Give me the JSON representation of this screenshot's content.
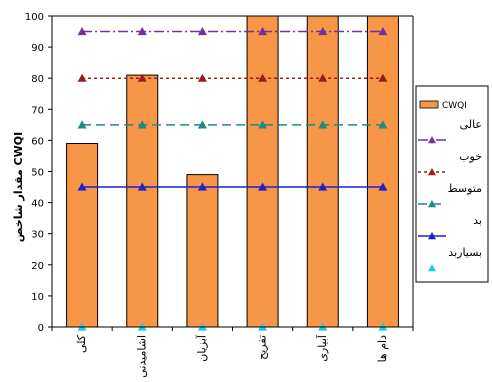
{
  "chart_data": {
    "type": "bar",
    "categories": [
      "کلی",
      "اشامیدنی",
      "آبزیان",
      "تفریح",
      "آبیاری",
      "دام ها"
    ],
    "ylabel": "مقدار شاخص CWQI",
    "ylim": [
      0,
      100
    ],
    "yticks": [
      0,
      10,
      20,
      30,
      40,
      50,
      60,
      70,
      80,
      90,
      100
    ],
    "grid": false,
    "legend_position": "right",
    "bar_series": {
      "name": "CWQI",
      "values": [
        59,
        81,
        49,
        100,
        100,
        100
      ],
      "color": "#f79646"
    },
    "line_series": [
      {
        "name": "عالی",
        "value": 95,
        "color": "#7030a0",
        "dash": "dashdot",
        "marker": "triangle"
      },
      {
        "name": "خوب",
        "value": 80,
        "color": "#9b1c1c",
        "dash": "dotted",
        "marker": "triangle"
      },
      {
        "name": "متوسط",
        "value": 65,
        "color": "#1f8a83",
        "dash": "dashed",
        "marker": "triangle"
      },
      {
        "name": "بد",
        "value": 45,
        "color": "#1f1fd6",
        "dash": "solid",
        "marker": "triangle"
      },
      {
        "name": "بسیاربد",
        "value": 0,
        "color": "#22c9e0",
        "dash": "none",
        "marker": "triangle"
      }
    ]
  }
}
